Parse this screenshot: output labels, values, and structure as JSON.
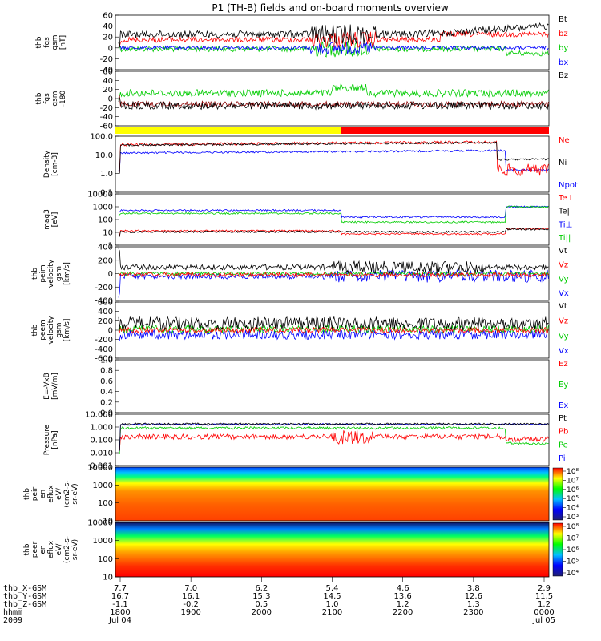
{
  "title": "P1 (TH-B) fields and on-board moments overview",
  "chart_data": [
    {
      "type": "line",
      "ylabel_lines": [
        "thb",
        "fgs",
        "gsm",
        "[nT]"
      ],
      "ylim": [
        -40,
        60
      ],
      "ticks": [
        "60",
        "40",
        "20",
        "0",
        "-20",
        "-40"
      ],
      "legend": [
        {
          "name": "Bt",
          "color": "#000000"
        },
        {
          "name": "bz",
          "color": "#ff0000"
        },
        {
          "name": "by",
          "color": "#00cc00"
        },
        {
          "name": "bx",
          "color": "#0000ff"
        }
      ]
    },
    {
      "type": "line",
      "ylabel_lines": [
        "thb",
        "fgs",
        "gsm",
        "-180"
      ],
      "ylim": [
        -60,
        60
      ],
      "ticks": [
        "60",
        "40",
        "20",
        "0",
        "-20",
        "-40",
        "-60"
      ],
      "legend": [
        {
          "name": "Bz",
          "color": "#000000"
        }
      ]
    },
    {
      "type": "line",
      "ylabel_lines": [
        "Density",
        "[cm-3]"
      ],
      "ylim": [
        0.1,
        100
      ],
      "ticks": [
        "100.0",
        "10.0",
        "1.0",
        "0.1"
      ],
      "legend": [
        {
          "name": "Ne",
          "color": "#ff0000"
        },
        {
          "name": "Ni",
          "color": "#000000"
        },
        {
          "name": "Npot",
          "color": "#0000ff"
        }
      ]
    },
    {
      "type": "line",
      "ylabel_lines": [
        "mag3",
        "[eV]"
      ],
      "ylim": [
        1,
        10000
      ],
      "ticks": [
        "10000",
        "1000",
        "100",
        "10",
        "1"
      ],
      "legend": [
        {
          "name": "Te⊥",
          "color": "#ff0000"
        },
        {
          "name": "Te||",
          "color": "#000000"
        },
        {
          "name": "Ti⊥",
          "color": "#0000ff"
        },
        {
          "name": "Ti||",
          "color": "#00cc00"
        }
      ]
    },
    {
      "type": "line",
      "ylabel_lines": [
        "thb",
        "peim",
        "velocity",
        "gsm",
        "[km/s]"
      ],
      "ylim": [
        -400,
        400
      ],
      "ticks": [
        "400",
        "200",
        "0",
        "-200",
        "-400"
      ],
      "legend": [
        {
          "name": "Vt",
          "color": "#000000"
        },
        {
          "name": "Vz",
          "color": "#ff0000"
        },
        {
          "name": "Vy",
          "color": "#00cc00"
        },
        {
          "name": "Vx",
          "color": "#0000ff"
        }
      ]
    },
    {
      "type": "line",
      "ylabel_lines": [
        "thb",
        "peem",
        "velocity",
        "gsm",
        "[km/s]"
      ],
      "ylim": [
        -600,
        600
      ],
      "ticks": [
        "600",
        "400",
        "200",
        "0",
        "-200",
        "-400",
        "-600"
      ],
      "legend": [
        {
          "name": "Vt",
          "color": "#000000"
        },
        {
          "name": "Vz",
          "color": "#ff0000"
        },
        {
          "name": "Vy",
          "color": "#00cc00"
        },
        {
          "name": "Vx",
          "color": "#0000ff"
        }
      ]
    },
    {
      "type": "line",
      "ylabel_lines": [
        "E=-VxB",
        "[mV/m]"
      ],
      "ylim": [
        0,
        1
      ],
      "ticks": [
        "1.0",
        "0.8",
        "0.6",
        "0.4",
        "0.2",
        "0.0"
      ],
      "legend": [
        {
          "name": "Ez",
          "color": "#ff0000"
        },
        {
          "name": "Ey",
          "color": "#00cc00"
        },
        {
          "name": "Ex",
          "color": "#0000ff"
        }
      ]
    },
    {
      "type": "line",
      "ylabel_lines": [
        "Pressure",
        "[nPa]"
      ],
      "ylim": [
        0.001,
        10
      ],
      "ticks": [
        "10.000",
        "1.000",
        "0.100",
        "0.010",
        "0.001"
      ],
      "legend": [
        {
          "name": "Pt",
          "color": "#000000"
        },
        {
          "name": "Pb",
          "color": "#ff0000"
        },
        {
          "name": "Pe",
          "color": "#00cc00"
        },
        {
          "name": "Pi",
          "color": "#0000ff"
        }
      ]
    },
    {
      "type": "heatmap",
      "ylabel_lines": [
        "thb",
        "peir",
        "en",
        "eflux",
        "eV/",
        "(cm2-s-",
        "sr-eV)"
      ],
      "ylim": [
        10,
        10000
      ],
      "ticks": [
        "10000",
        "1000",
        "100",
        "10"
      ],
      "colorbar_ticks": [
        "10⁸",
        "10⁷",
        "10⁶",
        "10⁵",
        "10⁴",
        "10³"
      ]
    },
    {
      "type": "heatmap",
      "ylabel_lines": [
        "thb",
        "peer",
        "en",
        "eflux",
        "eV/",
        "(cm2-s-",
        "sr-eV)"
      ],
      "ylim": [
        10,
        10000
      ],
      "ticks": [
        "10000",
        "1000",
        "100",
        "10"
      ],
      "colorbar_ticks": [
        "10⁸",
        "10⁷",
        "10⁶",
        "10⁵",
        "10⁴"
      ]
    }
  ],
  "xaxis": {
    "row_labels": [
      "thb_X-GSM",
      "thb_Y-GSM",
      "thb_Z-GSM",
      "hhmm",
      "2009"
    ],
    "columns": [
      {
        "x": 7.7,
        "y": 16.7,
        "z": -1.1,
        "hhmm": "1800",
        "date": "Jul 04"
      },
      {
        "x": 7.0,
        "y": 16.1,
        "z": -0.2,
        "hhmm": "1900",
        "date": ""
      },
      {
        "x": 6.2,
        "y": 15.3,
        "z": 0.5,
        "hhmm": "2000",
        "date": ""
      },
      {
        "x": 5.4,
        "y": 14.5,
        "z": 1.0,
        "hhmm": "2100",
        "date": ""
      },
      {
        "x": 4.6,
        "y": 13.6,
        "z": 1.2,
        "hhmm": "2200",
        "date": ""
      },
      {
        "x": 3.8,
        "y": 12.6,
        "z": 1.3,
        "hhmm": "2300",
        "date": ""
      },
      {
        "x": 2.9,
        "y": 11.5,
        "z": 1.2,
        "hhmm": "0000",
        "date": "Jul 05"
      }
    ]
  }
}
